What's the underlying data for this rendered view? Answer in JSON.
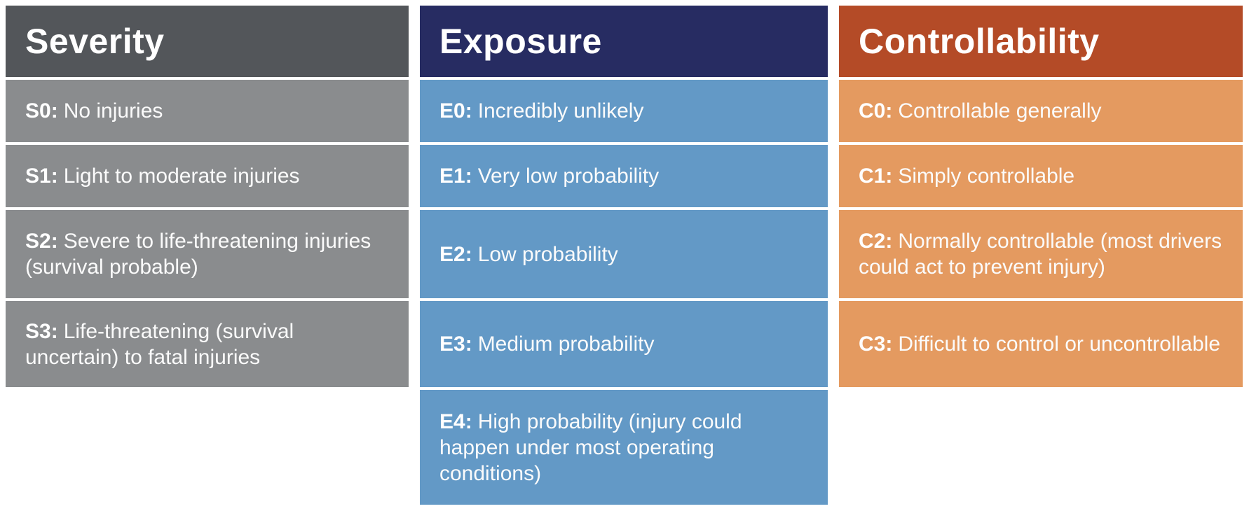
{
  "page": {
    "background": "#FFFFFF",
    "text_color": "#FFFFFF"
  },
  "tables": {
    "severity": {
      "title": "Severity",
      "header_bg": "#53565A",
      "cell_bg": "#8A8C8E",
      "rows": [
        {
          "code": "S0:",
          "text": "No injuries"
        },
        {
          "code": "S1:",
          "text": "Light to moderate injuries"
        },
        {
          "code": "S2:",
          "text": "Severe to life-threatening injuries (survival probable)"
        },
        {
          "code": "S3:",
          "text": "Life-threatening (survival uncertain) to fatal injuries"
        }
      ]
    },
    "exposure": {
      "title": "Exposure",
      "header_bg": "#272C62",
      "cell_bg": "#6399C6",
      "rows": [
        {
          "code": "E0:",
          "text": "Incredibly unlikely"
        },
        {
          "code": "E1:",
          "text": "Very low probability"
        },
        {
          "code": "E2:",
          "text": "Low probability"
        },
        {
          "code": "E3:",
          "text": "Medium probability"
        },
        {
          "code": "E4:",
          "text": "High probability (injury could happen under most operating conditions)"
        }
      ]
    },
    "controllability": {
      "title": "Controllability",
      "header_bg": "#B44B27",
      "cell_bg": "#E49A60",
      "rows": [
        {
          "code": "C0:",
          "text": "Controllable generally"
        },
        {
          "code": "C1:",
          "text": "Simply controllable"
        },
        {
          "code": "C2:",
          "text": "Normally controllable (most drivers could act to prevent injury)"
        },
        {
          "code": "C3:",
          "text": "Difficult to control or uncontrollable"
        }
      ]
    }
  }
}
